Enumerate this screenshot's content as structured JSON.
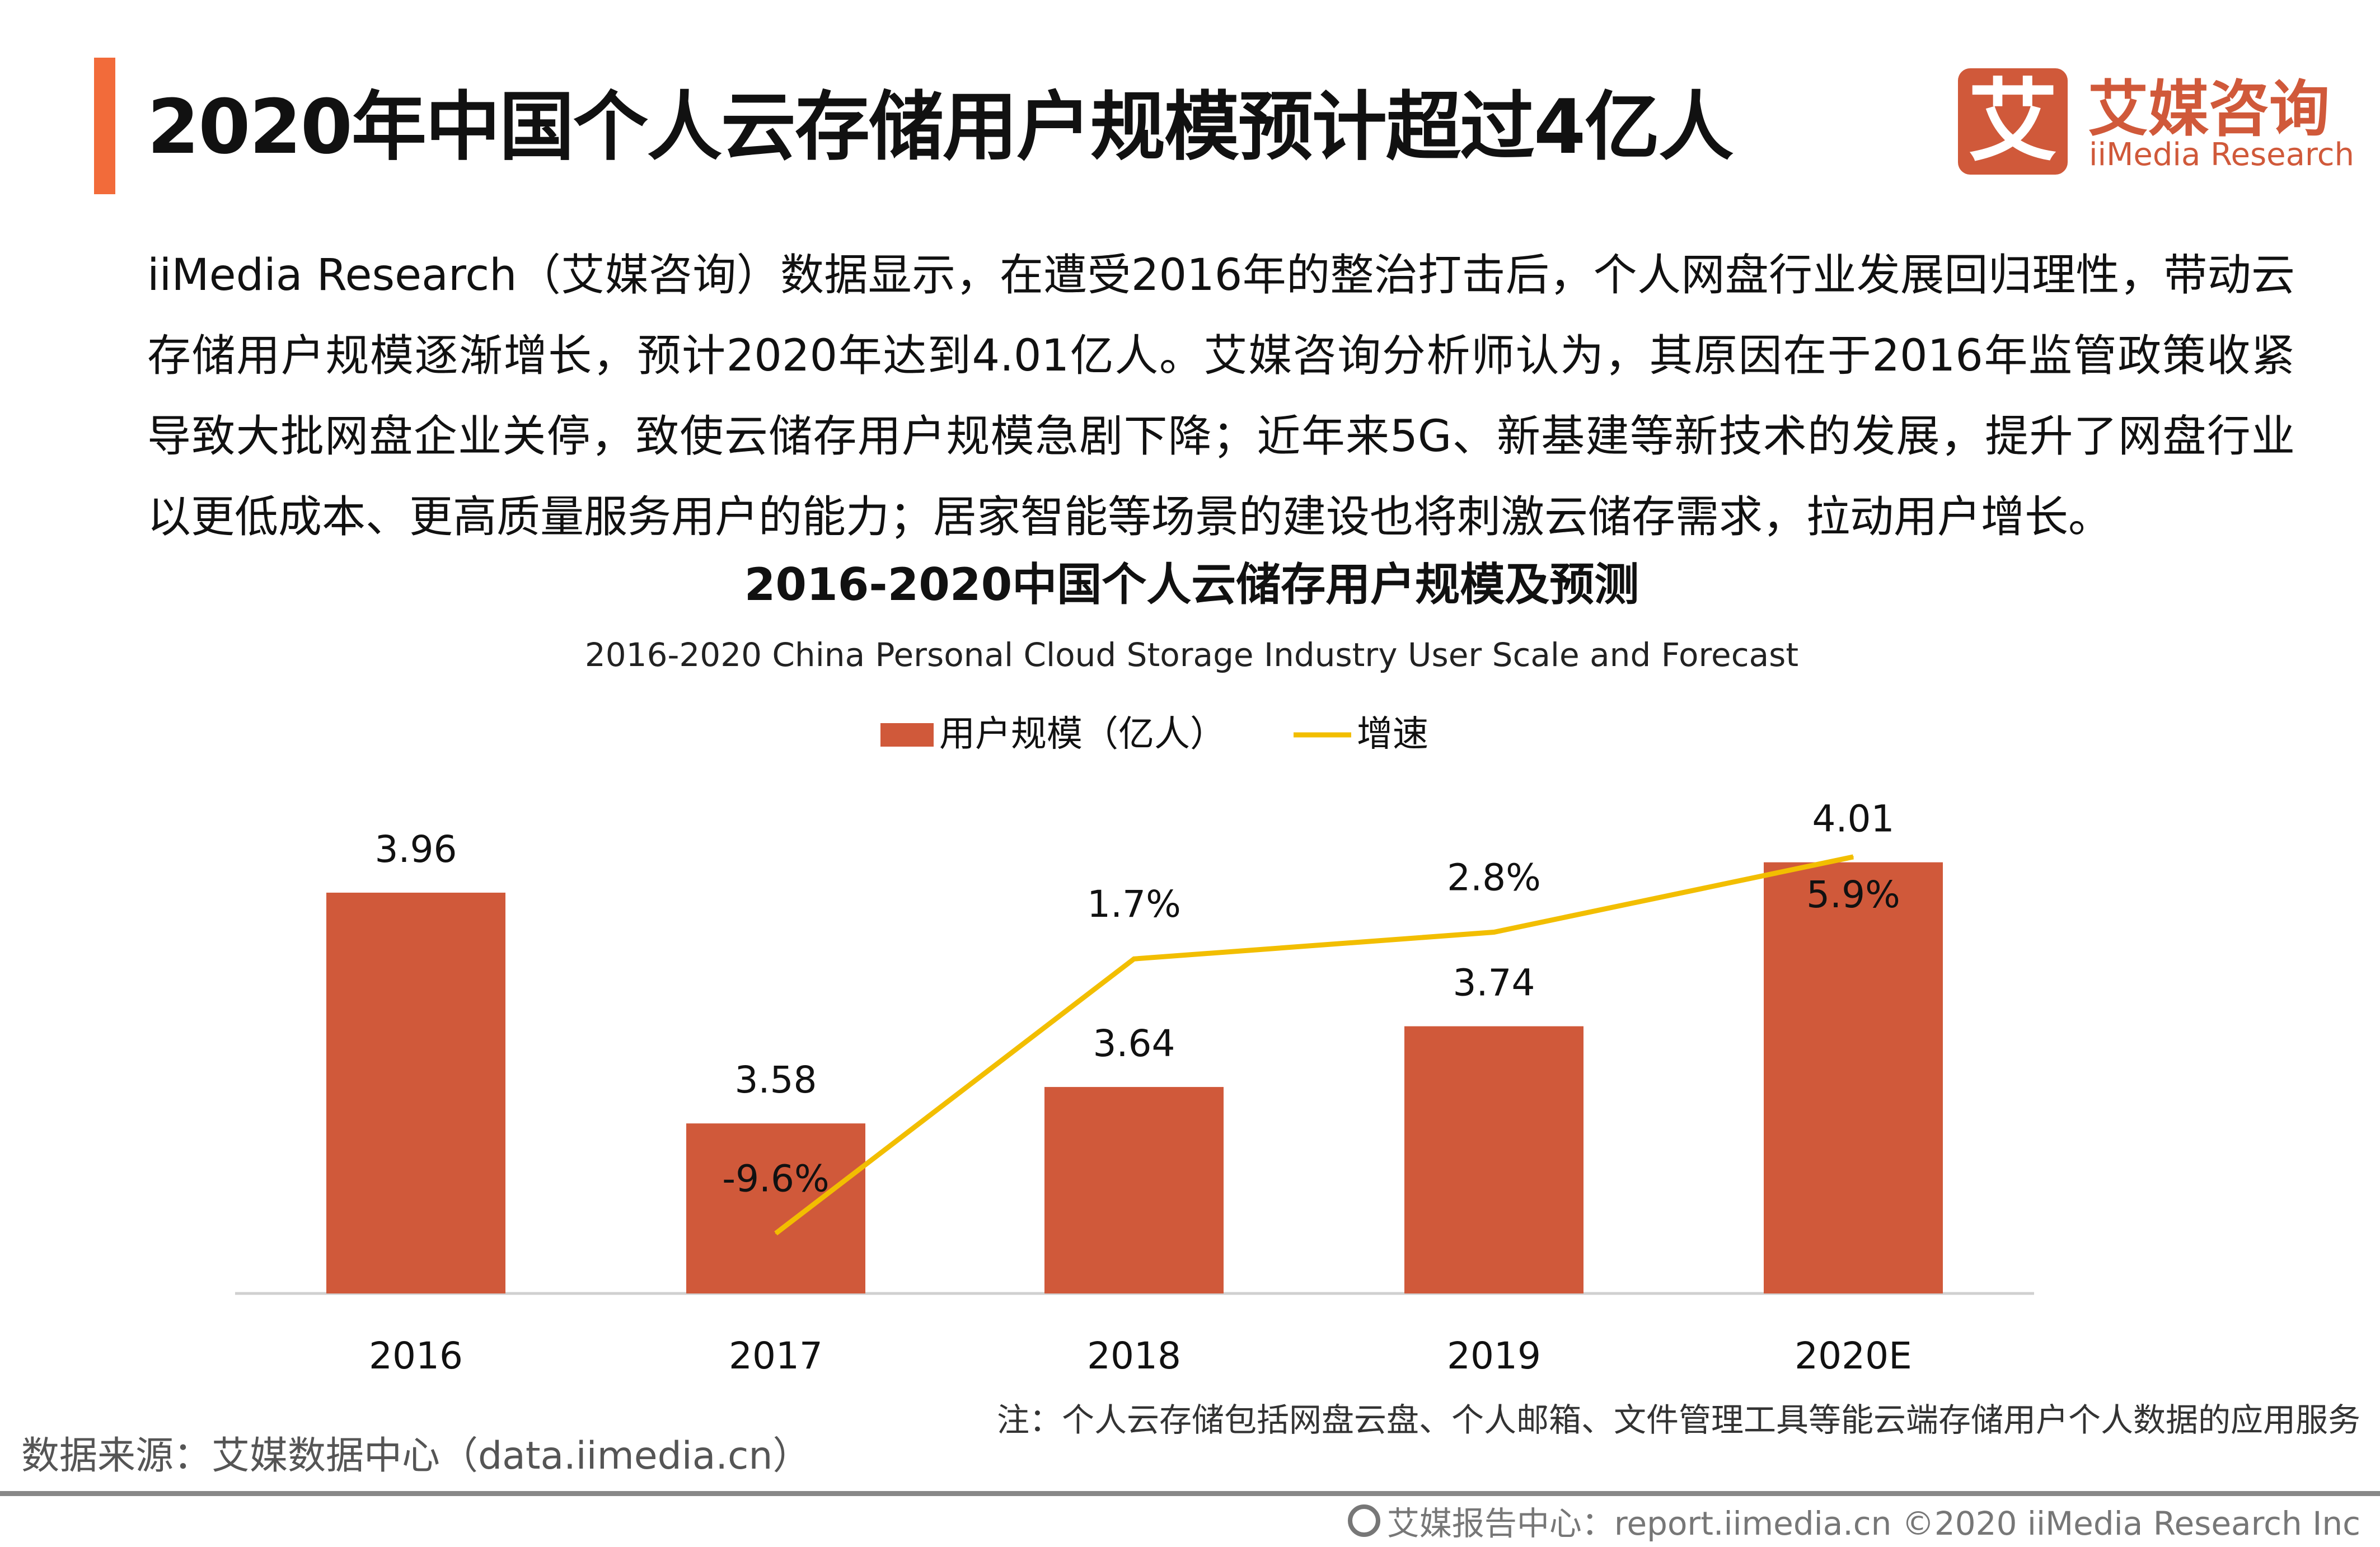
{
  "header": {
    "title": "2020年中国个人云存储用户规模预计超过4亿人",
    "accent_color": "#F26B3A"
  },
  "logo": {
    "mark": "艾",
    "cn": "艾媒咨询",
    "en": "iiMedia Research",
    "color": "#D0593A"
  },
  "paragraph": "iiMedia Research（艾媒咨询）数据显示，在遭受2016年的整治打击后，个人网盘行业发展回归理性，带动云存储用户规模逐渐增长，预计2020年达到4.01亿人。艾媒咨询分析师认为，其原因在于2016年监管政策收紧导致大批网盘企业关停，致使云储存用户规模急剧下降；近年来5G、新基建等新技术的发展，提升了网盘行业以更低成本、更高质量服务用户的能力；居家智能等场景的建设也将刺激云储存需求，拉动用户增长。",
  "chart_data": {
    "type": "bar+line",
    "title": "2016-2020中国个人云储存用户规模及预测",
    "subtitle": "2016-2020 China Personal Cloud Storage Industry User Scale and Forecast",
    "categories": [
      "2016",
      "2017",
      "2018",
      "2019",
      "2020E"
    ],
    "series": [
      {
        "name": "用户规模（亿人）",
        "type": "bar",
        "color": "#D0593A",
        "values": [
          3.96,
          3.58,
          3.64,
          3.74,
          4.01
        ],
        "labels": [
          "3.96",
          "3.58",
          "3.64",
          "3.74",
          "4.01"
        ]
      },
      {
        "name": "增速",
        "type": "line",
        "color": "#F2BE00",
        "values": [
          null,
          -9.6,
          1.7,
          2.8,
          5.9
        ],
        "labels": [
          "",
          "-9.6%",
          "1.7%",
          "2.8%",
          "5.9%"
        ]
      }
    ],
    "bar_ylim": [
      3.3,
      4.05
    ],
    "line_ylim": [
      -12,
      8
    ],
    "legend": "top-center",
    "grid": false
  },
  "note": "注：个人云存储包括网盘云盘、个人邮箱、文件管理工具等能云端存储用户个人数据的应用服务",
  "source": "数据来源：艾媒数据中心（data.iimedia.cn）",
  "footer": {
    "text": "艾媒报告中心：report.iimedia.cn   ©2020  iiMedia Research  Inc",
    "icon": "globe-icon"
  }
}
